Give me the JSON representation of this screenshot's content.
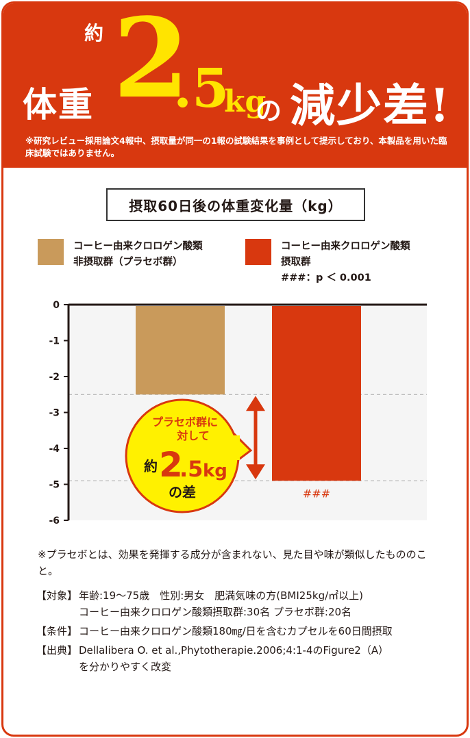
{
  "headline": {
    "taiju": "体重",
    "yaku": "約",
    "number_int": "2",
    "number_dec": ".5",
    "unit": "kg",
    "no": "の",
    "genshosa": "減少差!",
    "note": "※研究レビュー採用論文4報中、摂取量が同一の1報の試験結果を事例として提示しており、本製品を用いた臨床試験ではありません。"
  },
  "chart_title": "摂取60日後の体重変化量（kg）",
  "legend": [
    {
      "line1": "コーヒー由来クロロゲン酸類",
      "line2": "非摂取群（プラセボ群）",
      "color": "#c99a5b"
    },
    {
      "line1": "コーヒー由来クロロゲン酸類",
      "line2": "摂取群",
      "color": "#d8380f"
    }
  ],
  "significance": "###：p ＜ 0.001",
  "chart_data": {
    "type": "bar",
    "categories": [
      "コーヒー由来クロロゲン酸類非摂取群（プラセボ群）",
      "コーヒー由来クロロゲン酸類摂取群"
    ],
    "values": [
      -2.5,
      -4.9
    ],
    "colors": [
      "#c99a5b",
      "#d8380f"
    ],
    "ylim": [
      -6,
      0
    ],
    "yticks": [
      "0",
      "-1",
      "-2",
      "-3",
      "-4",
      "-5",
      "-6"
    ],
    "bar_labels": [
      "",
      "###"
    ],
    "difference": 2.5,
    "callout": {
      "line1": "プラセボ群に",
      "line2": "対して",
      "yaku": "約",
      "num": "2",
      "dec": ".5",
      "unit": "kg",
      "line4": "の差"
    }
  },
  "footnote": "※プラセボとは、効果を発揮する成分が含まれない、見た目や味が類似したもののこと。",
  "info": [
    {
      "label": "【対象】",
      "lines": [
        "年齢:19〜75歳　性別:男女　肥満気味の方(BMI25kg/㎡以上)",
        "コーヒー由来クロロゲン酸類摂取群:30名 プラセボ群:20名"
      ]
    },
    {
      "label": "【条件】",
      "lines": [
        "コーヒー由来クロロゲン酸類180㎎/日を含むカプセルを60日間摂取"
      ]
    },
    {
      "label": "【出典】",
      "lines": [
        "Dellalibera O. et al.,Phytotherapie.2006;4:1-4のFigure2（A）",
        "を分かりやすく改変"
      ]
    }
  ]
}
